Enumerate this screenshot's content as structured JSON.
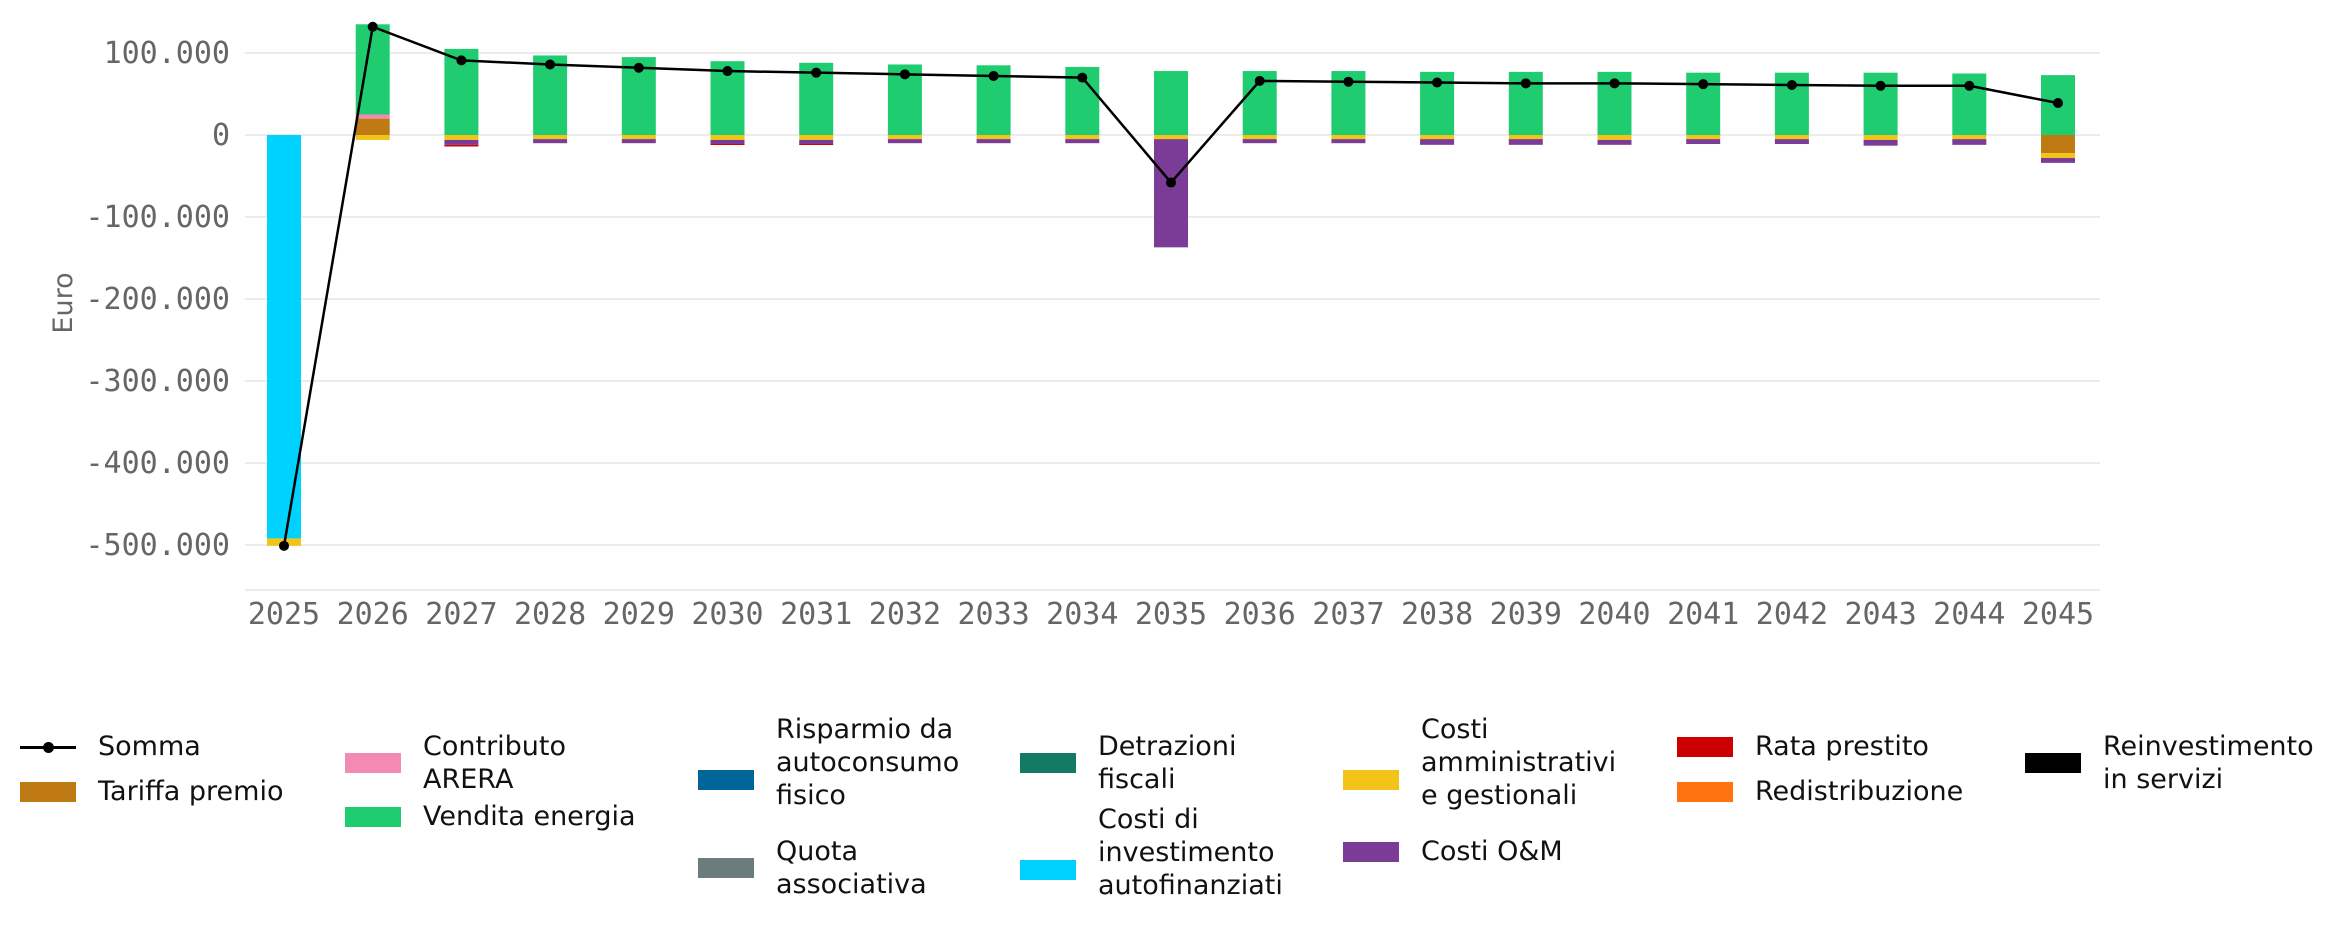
{
  "chart_data": {
    "type": "bar",
    "stacked": true,
    "title": "",
    "xlabel": "",
    "ylabel": "Euro",
    "ylim": [
      -550000,
      140000
    ],
    "yticks": [
      100000,
      0,
      -100000,
      -200000,
      -300000,
      -400000,
      -500000
    ],
    "ytick_labels": [
      "100.000",
      "0",
      "-100.000",
      "-200.000",
      "-300.000",
      "-400.000",
      "-500.000"
    ],
    "grid": "horizontal",
    "legend_position": "bottom",
    "categories": [
      "2025",
      "2026",
      "2027",
      "2028",
      "2029",
      "2030",
      "2031",
      "2032",
      "2033",
      "2034",
      "2035",
      "2036",
      "2037",
      "2038",
      "2039",
      "2040",
      "2041",
      "2042",
      "2043",
      "2044",
      "2045"
    ],
    "series": [
      {
        "name": "Tariffa premio",
        "color": "#C07A14",
        "values": [
          0,
          20000,
          0,
          0,
          0,
          0,
          0,
          0,
          0,
          0,
          0,
          0,
          0,
          0,
          0,
          0,
          0,
          0,
          0,
          0,
          -22000
        ]
      },
      {
        "name": "Contributo ARERA",
        "color": "#F28AB4",
        "values": [
          0,
          5000,
          0,
          0,
          0,
          0,
          0,
          0,
          0,
          0,
          0,
          0,
          0,
          0,
          0,
          0,
          0,
          0,
          0,
          0,
          0
        ]
      },
      {
        "name": "Vendita energia",
        "color": "#1FCC70",
        "values": [
          0,
          110000,
          105000,
          97000,
          95000,
          90000,
          88000,
          86000,
          85000,
          83000,
          78000,
          78000,
          78000,
          77000,
          77000,
          77000,
          76000,
          76000,
          76000,
          75000,
          73000
        ]
      },
      {
        "name": "Risparmio da autoconsumo fisico",
        "color": "#006699",
        "values": [
          0,
          0,
          0,
          0,
          0,
          0,
          0,
          0,
          0,
          0,
          0,
          0,
          0,
          0,
          0,
          0,
          0,
          0,
          0,
          0,
          0
        ]
      },
      {
        "name": "Quota associativa",
        "color": "#6C7B7B",
        "values": [
          0,
          0,
          0,
          0,
          0,
          0,
          0,
          0,
          0,
          0,
          0,
          0,
          0,
          0,
          0,
          0,
          0,
          0,
          0,
          0,
          0
        ]
      },
      {
        "name": "Detrazioni fiscali",
        "color": "#137A65",
        "values": [
          0,
          0,
          0,
          0,
          0,
          0,
          0,
          0,
          0,
          0,
          0,
          0,
          0,
          0,
          0,
          0,
          0,
          0,
          0,
          0,
          0
        ]
      },
      {
        "name": "Costi di investimento autofinanziati",
        "color": "#00D2FF",
        "values": [
          -492000,
          0,
          0,
          0,
          0,
          0,
          0,
          0,
          0,
          0,
          0,
          0,
          0,
          0,
          0,
          0,
          0,
          0,
          0,
          0,
          0
        ]
      },
      {
        "name": "Costi amministrativi e gestionali",
        "color": "#F2C418",
        "values": [
          -9000,
          -6000,
          -6000,
          -5000,
          -5000,
          -6000,
          -6000,
          -5000,
          -5000,
          -5000,
          -5000,
          -5000,
          -5000,
          -5000,
          -5000,
          -6000,
          -5000,
          -5000,
          -6000,
          -5000,
          -6000
        ]
      },
      {
        "name": "Costi O&M",
        "color": "#7B3C98",
        "values": [
          0,
          0,
          -6000,
          -5000,
          -5000,
          -5000,
          -5000,
          -5000,
          -5000,
          -5000,
          -132000,
          -5000,
          -5000,
          -7000,
          -7000,
          -6000,
          -6000,
          -6000,
          -7000,
          -7000,
          -6000
        ]
      },
      {
        "name": "Rata prestito",
        "color": "#CC0000",
        "values": [
          0,
          0,
          -2000,
          0,
          0,
          -1000,
          -1000,
          0,
          0,
          0,
          0,
          0,
          0,
          0,
          0,
          0,
          0,
          0,
          0,
          0,
          0
        ]
      },
      {
        "name": "Redistribuzione",
        "color": "#FF7410",
        "values": [
          0,
          0,
          0,
          0,
          0,
          0,
          0,
          0,
          0,
          0,
          0,
          0,
          0,
          0,
          0,
          0,
          0,
          0,
          0,
          0,
          0
        ]
      },
      {
        "name": "Reinvestimento in servizi",
        "color": "#000000",
        "values": [
          0,
          0,
          0,
          0,
          0,
          0,
          0,
          0,
          0,
          0,
          0,
          0,
          0,
          0,
          0,
          0,
          0,
          0,
          0,
          0,
          0
        ]
      }
    ],
    "line": {
      "name": "Somma",
      "color": "#000000",
      "values": [
        -501000,
        132000,
        91000,
        86000,
        82000,
        78000,
        76000,
        74000,
        72000,
        70000,
        -58000,
        66000,
        65000,
        64000,
        63000,
        63000,
        62000,
        61000,
        60000,
        60000,
        39000
      ]
    }
  },
  "legend": {
    "columns": [
      [
        {
          "label": "Somma",
          "kind": "line",
          "color": "#000000"
        },
        {
          "label": "Tariffa premio",
          "kind": "patch",
          "color": "#C07A14"
        }
      ],
      [
        {
          "label": "Contributo\nARERA",
          "kind": "patch",
          "color": "#F28AB4"
        },
        {
          "label": "Vendita energia",
          "kind": "patch",
          "color": "#1FCC70"
        }
      ],
      [
        {
          "label": "Risparmio da\nautoconsumo\nfisico",
          "kind": "patch",
          "color": "#006699"
        },
        {
          "label": "Quota\nassociativa",
          "kind": "patch",
          "color": "#6C7B7B"
        }
      ],
      [
        {
          "label": "Detrazioni\nfiscali",
          "kind": "patch",
          "color": "#137A65"
        },
        {
          "label": "Costi di\ninvestimento\nautofinanziati",
          "kind": "patch",
          "color": "#00D2FF"
        }
      ],
      [
        {
          "label": "Costi\namministrativi\ne gestionali",
          "kind": "patch",
          "color": "#F2C418"
        },
        {
          "label": "Costi O&M",
          "kind": "patch",
          "color": "#7B3C98"
        }
      ],
      [
        {
          "label": "Rata prestito",
          "kind": "patch",
          "color": "#CC0000"
        },
        {
          "label": "Redistribuzione",
          "kind": "patch",
          "color": "#FF7410"
        }
      ],
      [
        {
          "label": "Reinvestimento\nin servizi",
          "kind": "patch",
          "color": "#000000"
        }
      ]
    ]
  }
}
